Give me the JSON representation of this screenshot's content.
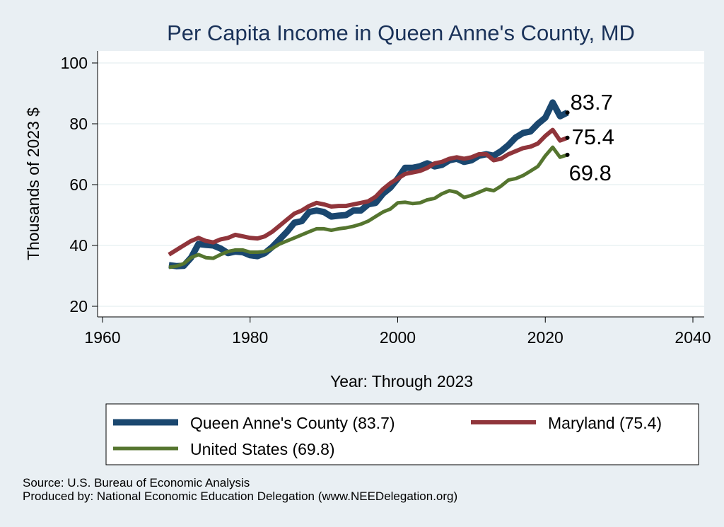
{
  "chart_data": {
    "type": "line",
    "title": "Per Capita Income in Queen Anne's County, MD",
    "xlabel": "Year: Through 2023",
    "ylabel": "Thousands of 2023 $",
    "xlim": [
      1960,
      2040
    ],
    "ylim": [
      20,
      100
    ],
    "xticks": [
      1960,
      1980,
      2000,
      2020,
      2040
    ],
    "yticks": [
      20,
      40,
      60,
      80,
      100
    ],
    "grid": "horizontal",
    "legend_position": "bottom",
    "x": [
      1969,
      1970,
      1971,
      1972,
      1973,
      1974,
      1975,
      1976,
      1977,
      1978,
      1979,
      1980,
      1981,
      1982,
      1983,
      1984,
      1985,
      1986,
      1987,
      1988,
      1989,
      1990,
      1991,
      1992,
      1993,
      1994,
      1995,
      1996,
      1997,
      1998,
      1999,
      2000,
      2001,
      2002,
      2003,
      2004,
      2005,
      2006,
      2007,
      2008,
      2009,
      2010,
      2011,
      2012,
      2013,
      2014,
      2015,
      2016,
      2017,
      2018,
      2019,
      2020,
      2021,
      2022,
      2023
    ],
    "series": [
      {
        "name": "Queen Anne's County (83.7)",
        "end_label": "83.7",
        "color": "#1a476f",
        "values": [
          33.5,
          33.2,
          33.3,
          36.0,
          40.5,
          40.2,
          40.0,
          39.0,
          37.5,
          38.0,
          37.8,
          36.8,
          36.5,
          37.5,
          39.5,
          42.0,
          44.5,
          47.5,
          48.0,
          51.0,
          51.5,
          51.0,
          49.5,
          49.8,
          50.0,
          51.5,
          51.5,
          53.5,
          54.0,
          57.0,
          59.0,
          62.0,
          65.5,
          65.5,
          66.0,
          67.0,
          66.0,
          66.5,
          68.0,
          68.5,
          67.5,
          68.0,
          69.5,
          70.0,
          69.5,
          71.0,
          73.0,
          75.5,
          77.0,
          77.5,
          80.0,
          82.0,
          87.0,
          82.5,
          83.7
        ]
      },
      {
        "name": "Maryland (75.4)",
        "end_label": "75.4",
        "color": "#90353b",
        "values": [
          37.0,
          38.5,
          40.0,
          41.5,
          42.5,
          41.5,
          41.0,
          42.0,
          42.5,
          43.5,
          43.0,
          42.5,
          42.3,
          43.0,
          44.5,
          46.5,
          48.5,
          50.5,
          51.5,
          53.0,
          54.0,
          53.5,
          52.8,
          53.0,
          53.0,
          53.5,
          54.0,
          54.5,
          56.0,
          58.5,
          60.5,
          62.0,
          63.5,
          64.0,
          64.5,
          65.5,
          67.0,
          67.5,
          68.5,
          69.0,
          68.5,
          69.0,
          70.0,
          70.0,
          68.0,
          68.5,
          70.0,
          71.0,
          72.0,
          72.5,
          73.5,
          76.0,
          78.0,
          74.5,
          75.4
        ]
      },
      {
        "name": "United States (69.8)",
        "end_label": "69.8",
        "color": "#55752f",
        "values": [
          32.8,
          33.2,
          34.0,
          36.0,
          37.0,
          36.0,
          35.8,
          37.0,
          38.0,
          38.5,
          38.5,
          37.8,
          37.8,
          38.0,
          39.0,
          40.5,
          41.5,
          42.5,
          43.5,
          44.5,
          45.5,
          45.5,
          45.0,
          45.5,
          45.8,
          46.3,
          47.0,
          48.0,
          49.5,
          51.0,
          52.0,
          54.0,
          54.2,
          53.8,
          54.0,
          55.0,
          55.5,
          57.0,
          58.0,
          57.5,
          55.8,
          56.5,
          57.5,
          58.5,
          58.0,
          59.5,
          61.5,
          62.0,
          63.0,
          64.5,
          66.0,
          69.5,
          72.3,
          69.0,
          69.8
        ]
      }
    ]
  },
  "footer": {
    "source": "Source: U.S. Bureau of Economic Analysis",
    "produced_by": "Produced by: National Economic Education Delegation (www.NEEDelegation.org)"
  }
}
